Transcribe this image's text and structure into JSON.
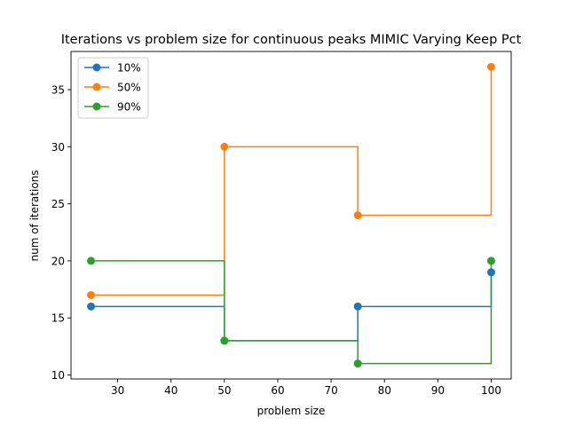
{
  "chart_data": {
    "type": "line",
    "drawstyle": "steps-post",
    "title": "Iterations vs problem size for continuous peaks MIMIC Varying Keep Pct",
    "xlabel": "problem size",
    "ylabel": "num of iterations",
    "x": [
      25,
      50,
      75,
      100
    ],
    "xlim": [
      21.25,
      103.75
    ],
    "ylim": [
      9.65,
      38.35
    ],
    "xticks": [
      30,
      40,
      50,
      60,
      70,
      80,
      90,
      100
    ],
    "yticks": [
      10,
      15,
      20,
      25,
      30,
      35
    ],
    "grid": false,
    "legend_position": "upper-left",
    "series": [
      {
        "name": "10%",
        "color": "#1f77b4",
        "values": [
          16,
          13,
          16,
          19
        ]
      },
      {
        "name": "50%",
        "color": "#ff7f0e",
        "values": [
          17,
          30,
          24,
          37
        ]
      },
      {
        "name": "90%",
        "color": "#2ca02c",
        "values": [
          20,
          13,
          11,
          20
        ]
      }
    ]
  }
}
